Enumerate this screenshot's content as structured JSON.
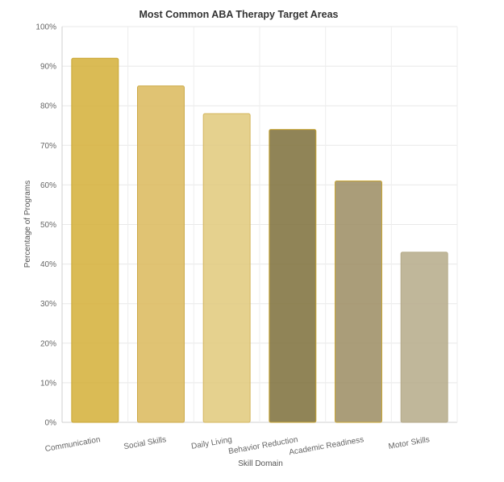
{
  "chart_data": {
    "type": "bar",
    "title": "Most Common ABA Therapy Target Areas",
    "xlabel": "Skill Domain",
    "ylabel": "Percentage of Programs",
    "categories": [
      "Communication",
      "Social Skills",
      "Daily Living",
      "Behavior Reduction",
      "Academic Readiness",
      "Motor Skills"
    ],
    "values": [
      92,
      85,
      78,
      74,
      61,
      43
    ],
    "ylim": [
      0,
      100
    ],
    "yticks": [
      0,
      10,
      20,
      30,
      40,
      50,
      60,
      70,
      80,
      90,
      100
    ],
    "ytick_suffix": "%",
    "grid": true,
    "legend": "none",
    "bar_colors": [
      "#D4AF37",
      "#DAB85A",
      "#E0C97A",
      "#7D6E3A",
      "#9B8C62",
      "#B5AA88"
    ],
    "bar_border_colors": [
      "#C9A632",
      "#CCAA48",
      "#D4B65E",
      "#C9A632",
      "#C9A632",
      "#B5AA88"
    ]
  }
}
